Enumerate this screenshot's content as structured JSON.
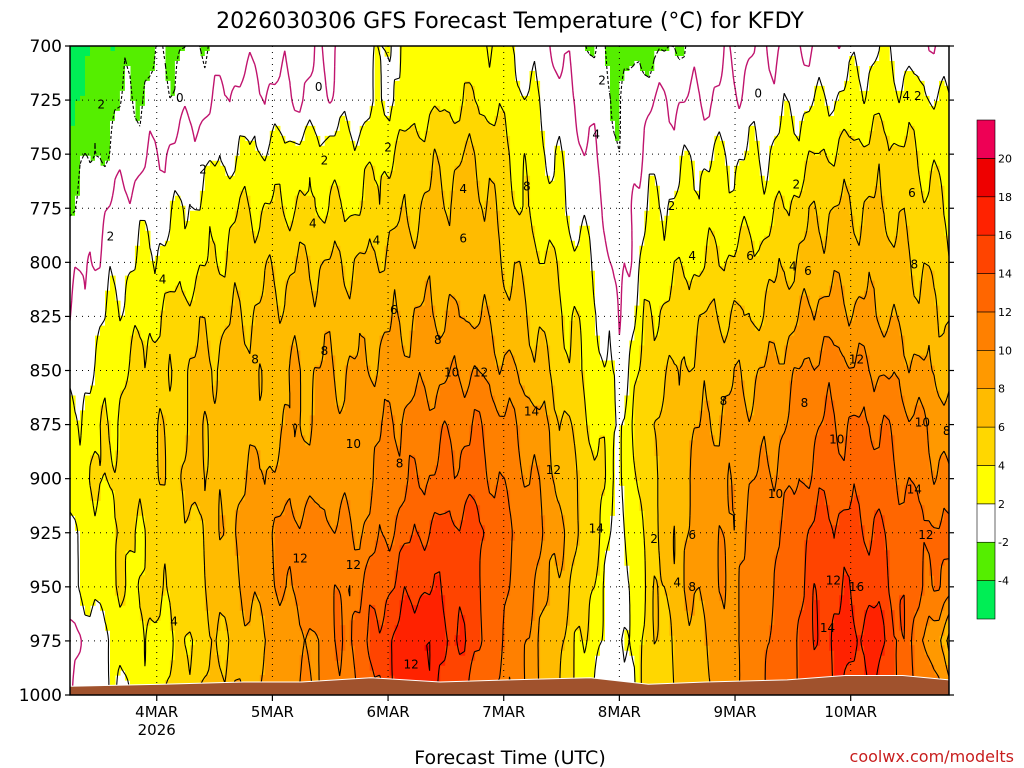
{
  "chart_data": {
    "type": "time-height contour",
    "title": "2026030306 GFS Forecast Temperature (°C) for KFDY",
    "xlabel": "Forecast Time (UTC)",
    "ylabel": "",
    "credit": "coolwx.com/modelts",
    "y_axis": {
      "unit": "hPa",
      "range": [
        700,
        1000
      ],
      "ticks": [
        "700",
        "725",
        "750",
        "775",
        "800",
        "825",
        "850",
        "875",
        "900",
        "925",
        "950",
        "975",
        "1000"
      ]
    },
    "x_axis": {
      "unit": "days since 2026-03-03 06Z",
      "range": [
        0,
        7.6
      ],
      "ticks": [
        {
          "t": 0.75,
          "label": "4MAR",
          "sub": "2026"
        },
        {
          "t": 1.75,
          "label": "5MAR",
          "sub": ""
        },
        {
          "t": 2.75,
          "label": "6MAR",
          "sub": ""
        },
        {
          "t": 3.75,
          "label": "7MAR",
          "sub": ""
        },
        {
          "t": 4.75,
          "label": "8MAR",
          "sub": ""
        },
        {
          "t": 5.75,
          "label": "9MAR",
          "sub": ""
        },
        {
          "t": 6.75,
          "label": "10MAR",
          "sub": ""
        }
      ]
    },
    "colorbar": {
      "levels": [
        -6,
        -4,
        -2,
        2,
        4,
        6,
        8,
        10,
        12,
        14,
        16,
        18,
        20,
        22
      ],
      "labels": [
        "-4",
        "-2",
        "2",
        "4",
        "6",
        "8",
        "10",
        "12",
        "14",
        "16",
        "18",
        "20"
      ],
      "colors": [
        "#00ee55",
        "#55ee00",
        "#ffffff",
        "#ffff00",
        "#ffd700",
        "#ffbb00",
        "#ff9900",
        "#ff8000",
        "#ff6600",
        "#ff4400",
        "#ff2200",
        "#ee0000",
        "#ee0055"
      ]
    },
    "time_nodes": [
      0,
      0.5,
      1.0,
      1.5,
      2.0,
      2.5,
      3.0,
      3.5,
      4.0,
      4.5,
      4.75,
      5.0,
      5.5,
      6.0,
      6.5,
      7.0,
      7.6
    ],
    "level_nodes": [
      1000,
      975,
      950,
      925,
      900,
      875,
      850,
      825,
      800,
      775,
      750,
      725,
      700
    ],
    "temperature": [
      [
        0,
        2,
        5,
        8,
        10,
        12,
        18,
        13,
        9,
        2,
        0,
        5,
        7,
        12,
        16,
        15,
        10
      ],
      [
        -1,
        3,
        4,
        7,
        9,
        13,
        18,
        15,
        9,
        3,
        1,
        5,
        8,
        12,
        16,
        17,
        6
      ],
      [
        2,
        4,
        5,
        8,
        11,
        12,
        16,
        15,
        10,
        4,
        0,
        5,
        9,
        11,
        16,
        15,
        11
      ],
      [
        2,
        4,
        5,
        9,
        11,
        10,
        14,
        15,
        11,
        5,
        1,
        5,
        9,
        11,
        15,
        14,
        12
      ],
      [
        3,
        5,
        6,
        8,
        9,
        9,
        12,
        13,
        10,
        5,
        2,
        5,
        9,
        10,
        13,
        13,
        10
      ],
      [
        2,
        5,
        6,
        7,
        8,
        9,
        11,
        12,
        9,
        4,
        2,
        6,
        8,
        9,
        12,
        12,
        9
      ],
      [
        1,
        4,
        6,
        7,
        8,
        8,
        9,
        10,
        7,
        3,
        1,
        5,
        7,
        8,
        11,
        10,
        7
      ],
      [
        0,
        3,
        5,
        6,
        7,
        7,
        8,
        8,
        6,
        3,
        0,
        4,
        6,
        6,
        9,
        8,
        6
      ],
      [
        -1,
        2,
        3,
        5,
        6,
        6,
        7,
        7,
        5,
        2,
        -1,
        3,
        4,
        5,
        7,
        7,
        5
      ],
      [
        -2,
        1,
        2,
        4,
        4,
        4,
        6,
        7,
        3,
        1,
        -1,
        2,
        3,
        3,
        6,
        6,
        4
      ],
      [
        -3,
        -1,
        1,
        2,
        3,
        3,
        5,
        6,
        3,
        0,
        -2,
        1,
        2,
        2,
        4,
        5,
        3
      ],
      [
        -4,
        -2,
        -1,
        1,
        0,
        1,
        3,
        4,
        2,
        -1,
        -2,
        0,
        0,
        1,
        2,
        3,
        2
      ],
      [
        -5,
        -3,
        -2,
        -1,
        -1,
        1,
        3,
        3,
        1,
        -2,
        -3,
        -3,
        -1,
        0,
        0,
        2,
        0
      ]
    ],
    "surface_pressure_hPa": [
      {
        "t": 0.0,
        "p": 996
      },
      {
        "t": 0.8,
        "p": 995
      },
      {
        "t": 1.5,
        "p": 994
      },
      {
        "t": 2.0,
        "p": 994
      },
      {
        "t": 2.6,
        "p": 992
      },
      {
        "t": 3.2,
        "p": 994
      },
      {
        "t": 3.8,
        "p": 993
      },
      {
        "t": 4.5,
        "p": 992
      },
      {
        "t": 5.0,
        "p": 995
      },
      {
        "t": 5.5,
        "p": 994
      },
      {
        "t": 6.2,
        "p": 993
      },
      {
        "t": 6.7,
        "p": 991
      },
      {
        "t": 7.2,
        "p": 991
      },
      {
        "t": 7.6,
        "p": 993
      }
    ],
    "contour_labels": [
      {
        "text": "2",
        "t": 0.27,
        "p": 727
      },
      {
        "text": "0",
        "t": 0.95,
        "p": 724
      },
      {
        "text": "0",
        "t": 2.15,
        "p": 719
      },
      {
        "text": "2",
        "t": 0.35,
        "p": 788
      },
      {
        "text": "2",
        "t": 1.15,
        "p": 757
      },
      {
        "text": "2",
        "t": 2.2,
        "p": 753
      },
      {
        "text": "2",
        "t": 2.75,
        "p": 747
      },
      {
        "text": "4",
        "t": 0.8,
        "p": 808
      },
      {
        "text": "4",
        "t": 2.1,
        "p": 782
      },
      {
        "text": "4",
        "t": 2.65,
        "p": 790
      },
      {
        "text": "4",
        "t": 3.4,
        "p": 766
      },
      {
        "text": "4",
        "t": 4.55,
        "p": 741
      },
      {
        "text": "2",
        "t": 4.6,
        "p": 716
      },
      {
        "text": "6",
        "t": 2.8,
        "p": 822
      },
      {
        "text": "6",
        "t": 3.4,
        "p": 789
      },
      {
        "text": "8",
        "t": 1.6,
        "p": 845
      },
      {
        "text": "8",
        "t": 2.2,
        "p": 841
      },
      {
        "text": "8",
        "t": 3.18,
        "p": 836
      },
      {
        "text": "8",
        "t": 3.95,
        "p": 765
      },
      {
        "text": "10",
        "t": 3.3,
        "p": 851
      },
      {
        "text": "12",
        "t": 3.55,
        "p": 851
      },
      {
        "text": "14",
        "t": 3.99,
        "p": 869
      },
      {
        "text": "10",
        "t": 2.45,
        "p": 884
      },
      {
        "text": "8",
        "t": 2.85,
        "p": 893
      },
      {
        "text": "12",
        "t": 1.99,
        "p": 937
      },
      {
        "text": "12",
        "t": 2.45,
        "p": 940
      },
      {
        "text": "12",
        "t": 4.18,
        "p": 896
      },
      {
        "text": "14",
        "t": 4.55,
        "p": 923
      },
      {
        "text": "12",
        "t": 2.95,
        "p": 986
      },
      {
        "text": "4",
        "t": 0.9,
        "p": 966
      },
      {
        "text": "2",
        "t": 5.05,
        "p": 928
      },
      {
        "text": "4",
        "t": 5.25,
        "p": 948
      },
      {
        "text": "6",
        "t": 5.38,
        "p": 926
      },
      {
        "text": "8",
        "t": 5.38,
        "p": 950
      },
      {
        "text": "2",
        "t": 5.2,
        "p": 774
      },
      {
        "text": "4",
        "t": 5.38,
        "p": 797
      },
      {
        "text": "6",
        "t": 5.88,
        "p": 797
      },
      {
        "text": "8",
        "t": 5.65,
        "p": 864
      },
      {
        "text": "10",
        "t": 6.1,
        "p": 907
      },
      {
        "text": "2",
        "t": 6.28,
        "p": 764
      },
      {
        "text": "0",
        "t": 5.95,
        "p": 722
      },
      {
        "text": "4",
        "t": 6.25,
        "p": 802
      },
      {
        "text": "6",
        "t": 6.38,
        "p": 804
      },
      {
        "text": "8",
        "t": 6.35,
        "p": 865
      },
      {
        "text": "10",
        "t": 6.63,
        "p": 882
      },
      {
        "text": "12",
        "t": 6.8,
        "p": 845
      },
      {
        "text": "8",
        "t": 7.3,
        "p": 801
      },
      {
        "text": "6",
        "t": 7.28,
        "p": 768
      },
      {
        "text": "4",
        "t": 7.23,
        "p": 723
      },
      {
        "text": "2",
        "t": 7.33,
        "p": 723
      },
      {
        "text": "10",
        "t": 7.37,
        "p": 874
      },
      {
        "text": "8",
        "t": 7.58,
        "p": 878
      },
      {
        "text": "14",
        "t": 7.3,
        "p": 905
      },
      {
        "text": "12",
        "t": 7.4,
        "p": 926
      },
      {
        "text": "12",
        "t": 6.6,
        "p": 947
      },
      {
        "text": "16",
        "t": 6.8,
        "p": 950
      },
      {
        "text": "14",
        "t": 6.55,
        "p": 969
      }
    ]
  }
}
